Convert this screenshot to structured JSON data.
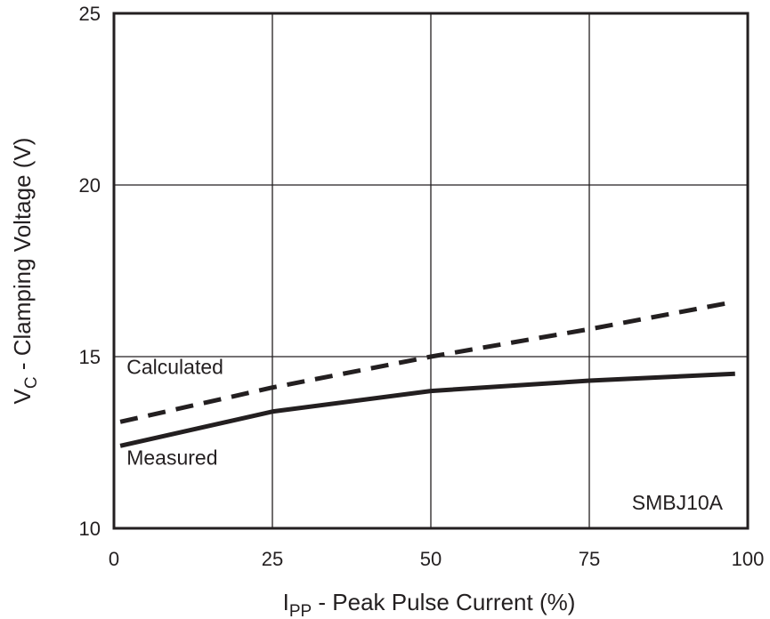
{
  "chart_data": {
    "type": "line",
    "title": "",
    "xlabel": {
      "main": "I",
      "sub": "PP",
      "rest": " - Peak Pulse Current (%)"
    },
    "ylabel": {
      "main": "V",
      "sub": "C",
      "rest": " - Clamping Voltage (V)"
    },
    "xlim": [
      0,
      100
    ],
    "ylim": [
      10,
      25
    ],
    "grid": true,
    "x_ticks": [
      0,
      25,
      50,
      75,
      100
    ],
    "x_tick_labels": [
      "0",
      "25",
      "50",
      "75",
      "100"
    ],
    "y_ticks": [
      10,
      15,
      20,
      25
    ],
    "y_tick_labels": [
      "10",
      "15",
      "20",
      "25"
    ],
    "device_label": "SMBJ10A",
    "series": [
      {
        "name": "Calculated",
        "style": "dashed",
        "x": [
          1,
          25,
          50,
          75,
          98
        ],
        "y": [
          13.1,
          14.1,
          15.0,
          15.8,
          16.6
        ],
        "label_anchor": {
          "x": 2,
          "y": 14.5
        }
      },
      {
        "name": "Measured",
        "style": "solid",
        "x": [
          1,
          25,
          50,
          75,
          98
        ],
        "y": [
          12.4,
          13.4,
          14.0,
          14.3,
          14.5
        ],
        "label_anchor": {
          "x": 2,
          "y": 11.85
        }
      }
    ],
    "colors": {
      "line": "#231f20",
      "grid": "#231f20",
      "background": "#ffffff"
    }
  }
}
